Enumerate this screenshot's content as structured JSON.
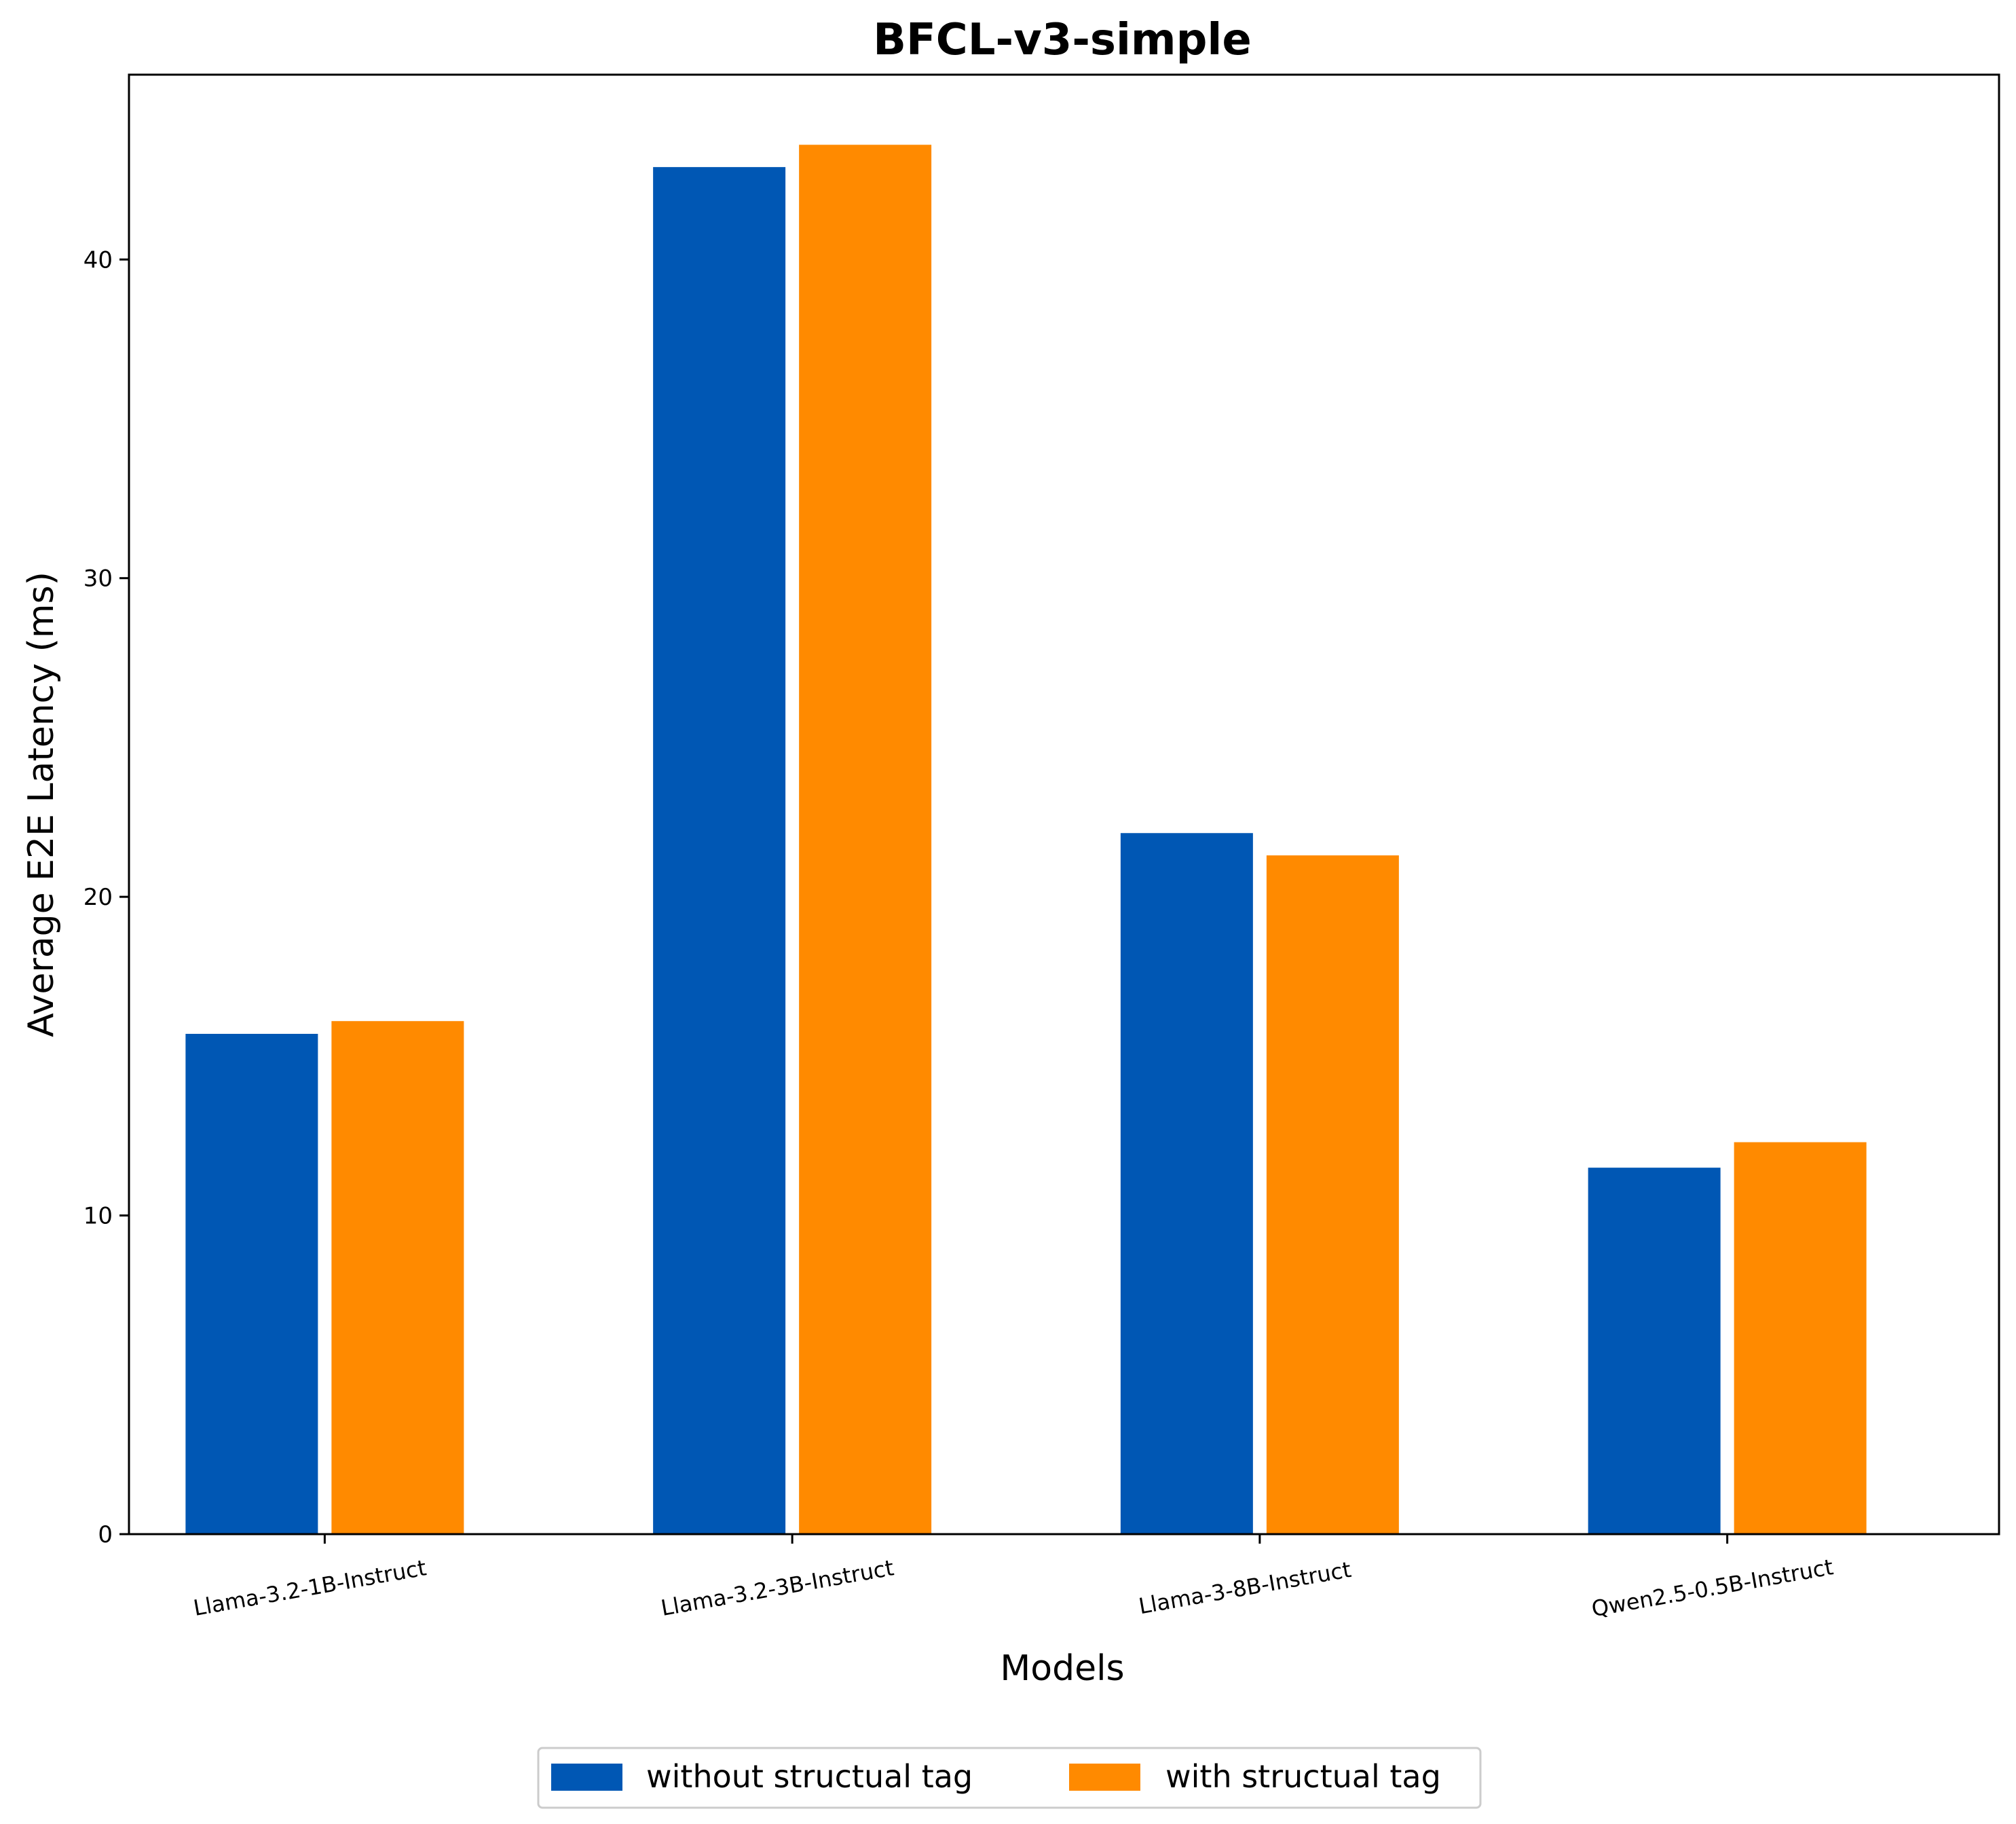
{
  "chart_data": {
    "type": "bar",
    "title": "BFCL-v3-simple",
    "xlabel": "Models",
    "ylabel": "Average E2E Latency (ms)",
    "categories": [
      "Llama-3.2-1B-Instruct",
      "Llama-3.2-3B-Instruct",
      "Llama-3-8B-Instruct",
      "Qwen2.5-0.5B-Instruct"
    ],
    "series": [
      {
        "name": "without structual tag",
        "color": "#0057b4",
        "values": [
          15.7,
          42.9,
          22.0,
          11.5
        ]
      },
      {
        "name": "with structual tag",
        "color": "#ff8a00",
        "values": [
          16.1,
          43.6,
          21.3,
          12.3
        ]
      }
    ],
    "ylim": [
      0,
      45.8
    ],
    "yticks": [
      "0",
      "10",
      "20",
      "30",
      "40"
    ],
    "grid": false,
    "legend_position": "bottom-center"
  }
}
